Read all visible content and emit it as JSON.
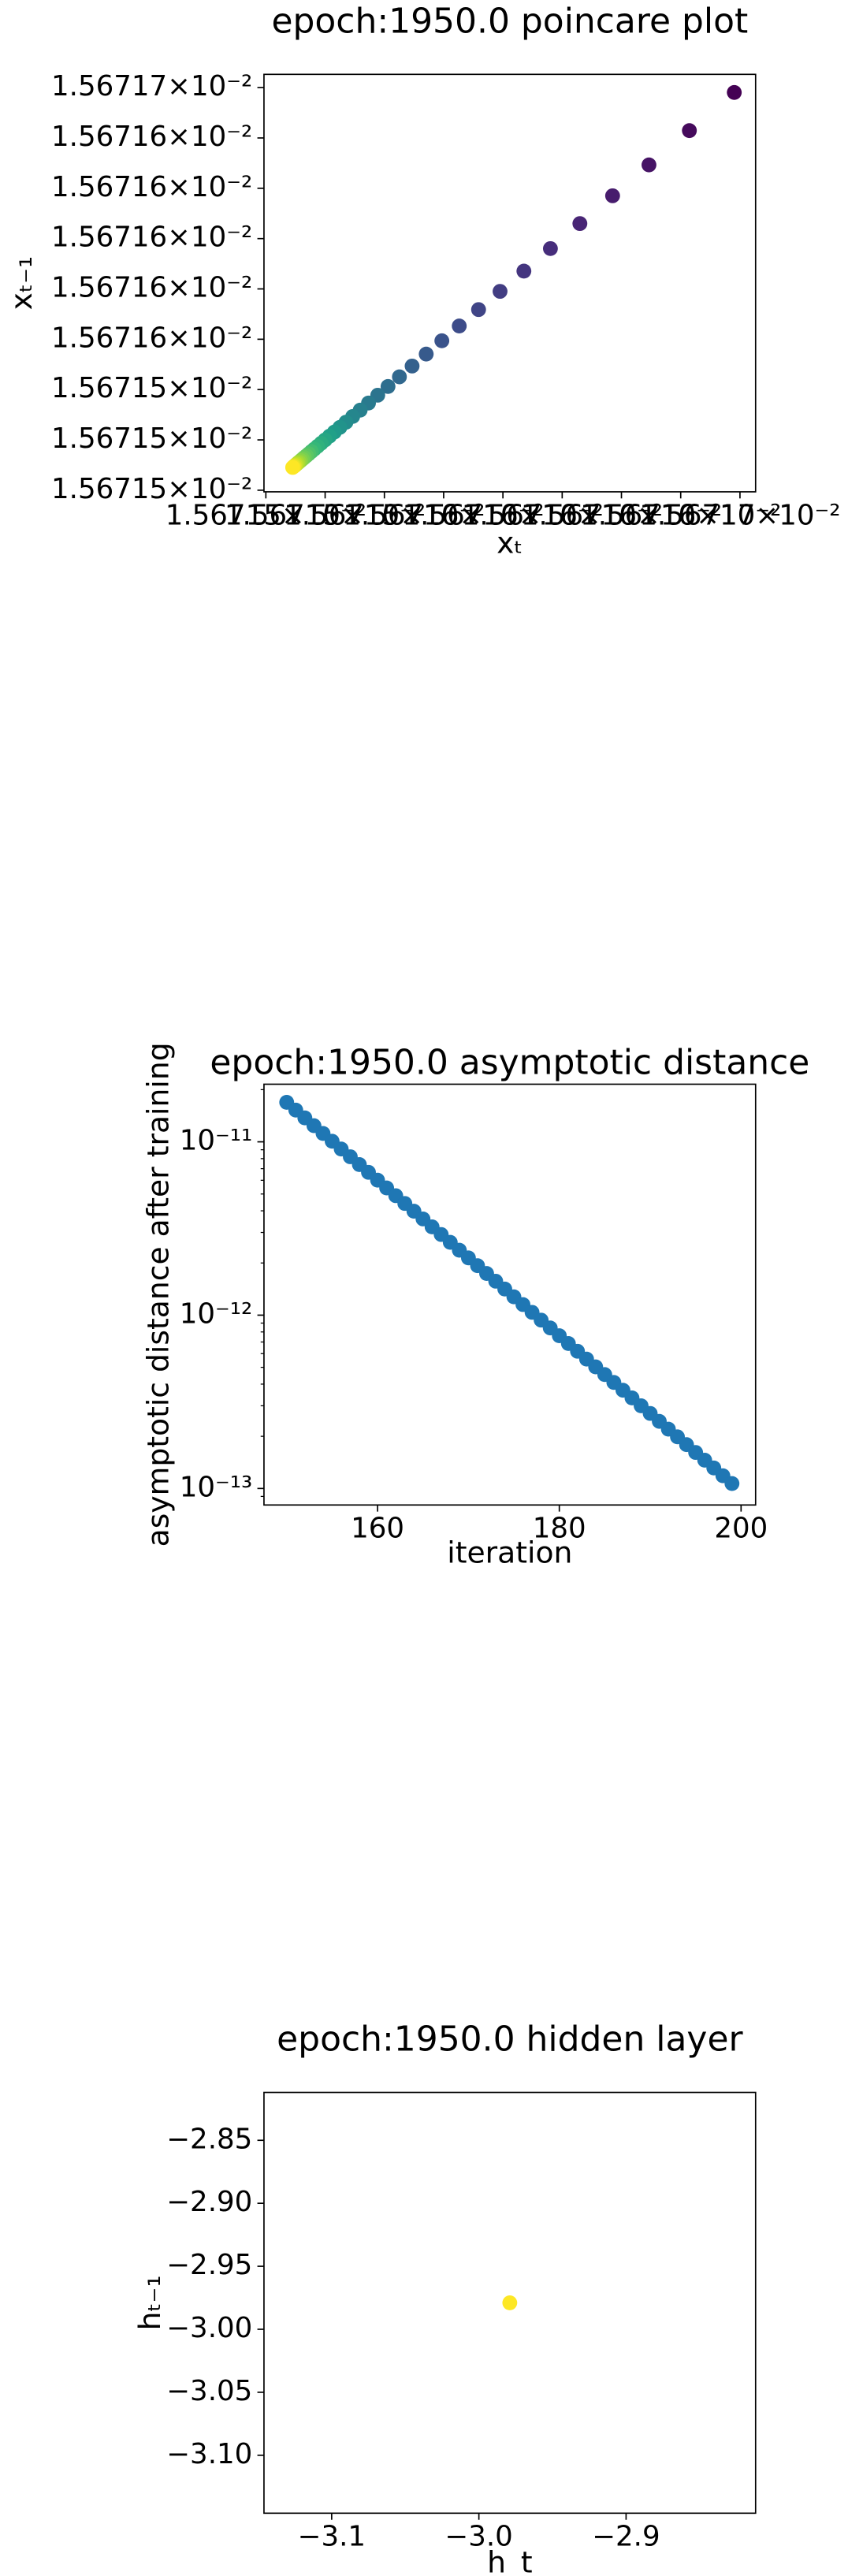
{
  "chart_data": [
    {
      "type": "scatter",
      "title": "epoch:1950.0 poincare plot",
      "xlabel": "xₜ",
      "ylabel": "xₜ₋₁",
      "colormap": "viridis",
      "x": [
        0.0156716726,
        0.01567165366,
        0.01567163661,
        0.01567162127,
        0.01567160747,
        0.01567159504,
        0.01567158385,
        0.01567157379,
        0.01567156473,
        0.01567155658,
        0.01567154924,
        0.01567154264,
        0.01567153669,
        0.01567153134,
        0.01567152653,
        0.0156715222,
        0.0156715183,
        0.01567151479,
        0.01567151163,
        0.01567150879,
        0.01567150623,
        0.01567150392,
        0.01567150185,
        0.01567149999,
        0.01567149831,
        0.0156714968,
        0.01567149544,
        0.01567149421,
        0.01567149311,
        0.01567149212,
        0.01567149123,
        0.01567149043,
        0.0156714897,
        0.01567148905,
        0.01567148847,
        0.01567148794,
        0.01567148747,
        0.01567148704,
        0.01567148666,
        0.01567148631
      ],
      "values": [
        0.0156716726,
        0.01567165366,
        0.01567163661,
        0.01567162127,
        0.01567160747,
        0.01567159504,
        0.01567158385,
        0.01567157379,
        0.01567156473,
        0.01567155658,
        0.01567154924,
        0.01567154264,
        0.01567153669,
        0.01567153134,
        0.01567152653,
        0.0156715222,
        0.0156715183,
        0.01567151479,
        0.01567151163,
        0.01567150879,
        0.01567150623,
        0.01567150392,
        0.01567150185,
        0.01567149999,
        0.01567149831,
        0.0156714968,
        0.01567149544,
        0.01567149421,
        0.01567149311,
        0.01567149212,
        0.01567149123,
        0.01567149043,
        0.0156714897,
        0.01567148905,
        0.01567148847,
        0.01567148794,
        0.01567148747,
        0.01567148704,
        0.01567148666,
        0.01567148631
      ],
      "xlim": [
        0.0156714742,
        0.0156716816
      ],
      "ylim": [
        0.0156714742,
        0.0156716816
      ],
      "xticks": [
        {
          "value": 0.015671475,
          "label": "1.56715×10⁻²"
        },
        {
          "value": 0.0156715,
          "label": "1.56715×10⁻²"
        },
        {
          "value": 0.015671525,
          "label": "1.56715×10⁻²"
        },
        {
          "value": 0.01567155,
          "label": "1.56716×10⁻²"
        },
        {
          "value": 0.015671575,
          "label": "1.56716×10⁻²"
        },
        {
          "value": 0.0156716,
          "label": "1.56716×10⁻²"
        },
        {
          "value": 0.015671625,
          "label": "1.56716×10⁻²"
        },
        {
          "value": 0.01567165,
          "label": "1.56716×10⁻²"
        },
        {
          "value": 0.015671675,
          "label": "1.56717×10⁻²"
        }
      ],
      "yticks": [
        {
          "value": 0.015671475,
          "label": "1.56715×10⁻²"
        },
        {
          "value": 0.0156715,
          "label": "1.56715×10⁻²"
        },
        {
          "value": 0.015671525,
          "label": "1.56715×10⁻²"
        },
        {
          "value": 0.01567155,
          "label": "1.56716×10⁻²"
        },
        {
          "value": 0.015671575,
          "label": "1.56716×10⁻²"
        },
        {
          "value": 0.0156716,
          "label": "1.56716×10⁻²"
        },
        {
          "value": 0.015671625,
          "label": "1.56716×10⁻²"
        },
        {
          "value": 0.01567165,
          "label": "1.56716×10⁻²"
        },
        {
          "value": 0.015671675,
          "label": "1.56717×10⁻²"
        }
      ]
    },
    {
      "type": "scatter",
      "title": "epoch:1950.0 asymptotic distance",
      "xlabel": "iteration",
      "ylabel": "asymptotic distance after training",
      "color": "#1f77b4",
      "yscale": "log",
      "x": [
        150,
        151,
        152,
        153,
        154,
        155,
        156,
        157,
        158,
        159,
        160,
        161,
        162,
        163,
        164,
        165,
        166,
        167,
        168,
        169,
        170,
        171,
        172,
        173,
        174,
        175,
        176,
        177,
        178,
        179,
        180,
        181,
        182,
        183,
        184,
        185,
        186,
        187,
        188,
        189,
        190,
        191,
        192,
        193,
        194,
        195,
        196,
        197,
        198,
        199
      ],
      "values": [
        1.69e-11,
        1.524e-11,
        1.374e-11,
        1.239e-11,
        1.118e-11,
        1.008e-11,
        9.09e-12,
        8.2e-12,
        7.39e-12,
        6.67e-12,
        6.01e-12,
        5.42e-12,
        4.89e-12,
        4.41e-12,
        3.98e-12,
        3.59e-12,
        3.23e-12,
        2.92e-12,
        2.63e-12,
        2.37e-12,
        2.14e-12,
        1.93e-12,
        1.74e-12,
        1.57e-12,
        1.415e-12,
        1.276e-12,
        1.151e-12,
        1.038e-12,
        9.36e-13,
        8.44e-13,
        7.61e-13,
        6.86e-13,
        6.19e-13,
        5.58e-13,
        5.03e-13,
        4.54e-13,
        4.09e-13,
        3.69e-13,
        3.33e-13,
        3e-13,
        2.71e-13,
        2.44e-13,
        2.2e-13,
        1.985e-13,
        1.79e-13,
        1.614e-13,
        1.456e-13,
        1.313e-13,
        1.184e-13,
        1.068e-13
      ],
      "xlim": [
        147.5,
        201.6
      ],
      "ylim": [
        8.03e-14,
        2.15e-11
      ],
      "xticks": [
        160,
        180,
        200
      ],
      "yticks": [
        {
          "value": 1e-13,
          "label": "10⁻¹³"
        },
        {
          "value": 1e-12,
          "label": "10⁻¹²"
        },
        {
          "value": 1e-11,
          "label": "10⁻¹¹"
        }
      ]
    },
    {
      "type": "scatter",
      "title": "epoch:1950.0 hidden layer",
      "xlabel": "h_t",
      "ylabel": "hₜ₋₁",
      "color": "#fde725",
      "x": [
        -2.979
      ],
      "values": [
        -2.979
      ],
      "xlim": [
        -3.146,
        -2.812
      ],
      "ylim": [
        -3.146,
        -2.812
      ],
      "xticks": [
        {
          "value": -3.1,
          "label": "−3.1"
        },
        {
          "value": -3.0,
          "label": "−3.0"
        },
        {
          "value": -2.9,
          "label": "−2.9"
        }
      ],
      "yticks": [
        {
          "value": -3.1,
          "label": "−3.10"
        },
        {
          "value": -3.05,
          "label": "−3.05"
        },
        {
          "value": -3.0,
          "label": "−3.00"
        },
        {
          "value": -2.95,
          "label": "−2.95"
        },
        {
          "value": -2.9,
          "label": "−2.90"
        },
        {
          "value": -2.85,
          "label": "−2.85"
        }
      ]
    }
  ]
}
